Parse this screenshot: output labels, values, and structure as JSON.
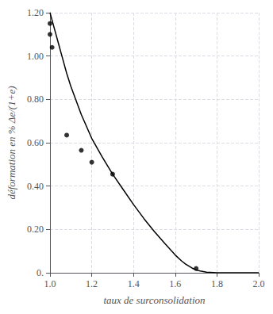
{
  "chart_data": {
    "type": "line",
    "xlabel": "taux de surconsolidation",
    "ylabel": "déformation en % Δe/(1+e)",
    "series": [
      {
        "type": "line",
        "color": "#000000",
        "x": [
          1.0,
          1.02,
          1.04,
          1.06,
          1.08,
          1.1,
          1.15,
          1.2,
          1.25,
          1.3,
          1.35,
          1.4,
          1.45,
          1.5,
          1.55,
          1.6,
          1.63,
          1.65,
          1.68,
          1.7,
          1.72,
          1.75,
          1.8,
          1.9,
          2.0
        ],
        "values": [
          1.2,
          1.13,
          1.06,
          0.99,
          0.92,
          0.86,
          0.73,
          0.62,
          0.535,
          0.455,
          0.385,
          0.315,
          0.25,
          0.19,
          0.135,
          0.082,
          0.055,
          0.04,
          0.022,
          0.013,
          0.008,
          0.003,
          0.0,
          0.0,
          0.0
        ]
      },
      {
        "type": "scatter",
        "color": "#000000",
        "x": [
          1.0,
          1.0,
          1.01,
          1.08,
          1.15,
          1.2,
          1.3,
          1.7
        ],
        "values": [
          1.15,
          1.1,
          1.04,
          0.635,
          0.565,
          0.51,
          0.455,
          0.02
        ]
      }
    ],
    "xlim": [
      1.0,
      2.0
    ],
    "ylim": [
      0.0,
      1.2
    ],
    "xticks": [
      {
        "value": 1.0,
        "label": "1.0"
      },
      1.2,
      1.4,
      1.6,
      1.8,
      {
        "value": 2.0,
        "label": "2.0"
      }
    ],
    "yticks": [
      {
        "value": 0.0,
        "label": "0."
      },
      {
        "value": 0.2,
        "label": "0.20"
      },
      {
        "value": 0.4,
        "label": "0.40"
      },
      {
        "value": 0.6,
        "label": "0.60"
      },
      {
        "value": 0.8,
        "label": "0.80"
      },
      {
        "value": 1.0,
        "label": "1.00"
      },
      {
        "value": 1.2,
        "label": "1.20"
      }
    ],
    "grid": true
  }
}
